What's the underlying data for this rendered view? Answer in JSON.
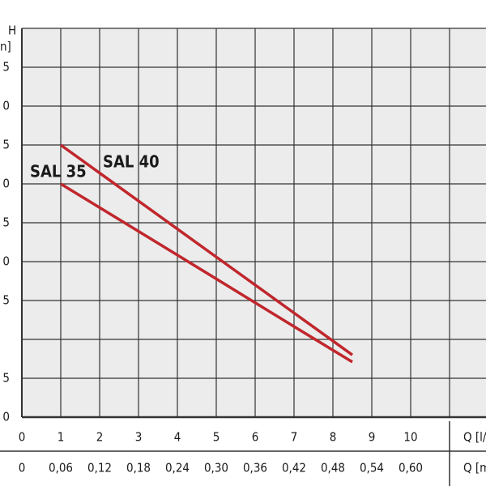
{
  "chart_data": {
    "type": "line",
    "y_label": "H",
    "y_unit": "n]",
    "x_label": "Q [l/",
    "x2_label": "Q [m",
    "x": [
      1,
      4,
      7,
      8.5
    ],
    "series": [
      {
        "name": "SAL 40",
        "color": "#c0272d",
        "values": [
          7,
          4.84,
          2.68,
          1.6
        ]
      },
      {
        "name": "SAL 35",
        "color": "#c0272d",
        "values": [
          6,
          4.17,
          2.33,
          1.42
        ]
      }
    ],
    "xlim": [
      0,
      11
    ],
    "xticks": [
      0,
      1,
      2,
      3,
      4,
      5,
      6,
      7,
      8,
      9,
      10
    ],
    "x2lim": [
      0,
      0.66
    ],
    "x2ticks": [
      0,
      {
        "value": 0.06,
        "label": "0,06"
      },
      {
        "value": 0.12,
        "label": "0,12"
      },
      {
        "value": 0.18,
        "label": "0,18"
      },
      {
        "value": 0.24,
        "label": "0,24"
      },
      {
        "value": 0.3,
        "label": "0,30"
      },
      {
        "value": 0.36,
        "label": "0,36"
      },
      {
        "value": 0.42,
        "label": "0,42"
      },
      {
        "value": 0.48,
        "label": "0,48"
      },
      {
        "value": 0.54,
        "label": "0,54"
      },
      {
        "value": 0.6,
        "label": "0,60"
      }
    ],
    "ylim": [
      0,
      10
    ],
    "yticks": [
      {
        "value": 0,
        "label": "0"
      },
      {
        "value": 1,
        "label": "5"
      },
      {
        "value": 2,
        "label": null
      },
      {
        "value": 3,
        "label": "5"
      },
      {
        "value": 4,
        "label": "0"
      },
      {
        "value": 5,
        "label": "5"
      },
      {
        "value": 6,
        "label": "0"
      },
      {
        "value": 7,
        "label": "5"
      },
      {
        "value": 8,
        "label": "0"
      },
      {
        "value": 9,
        "label": "5"
      },
      {
        "value": 10,
        "label": null
      }
    ],
    "grid": true
  }
}
